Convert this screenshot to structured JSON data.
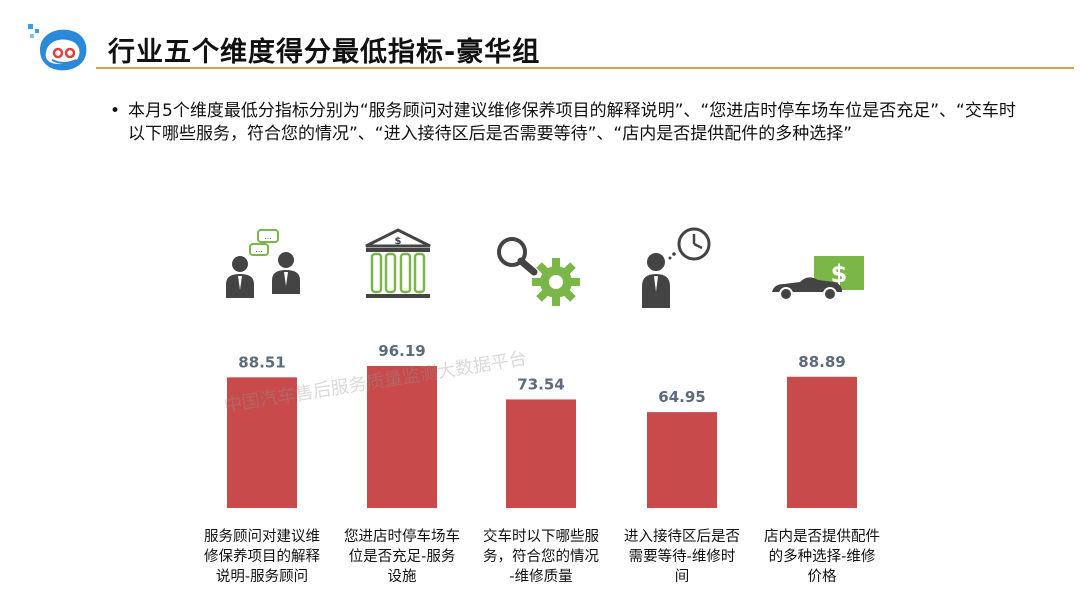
{
  "title": "行业五个维度得分最低指标-豪华组",
  "bullet_text": "本月5个维度最低分指标分别为“服务顾问对建议维修保养项目的解释说明”、“您进店时停车场车位是否充足”、“交车时以下哪些服务，符合您的情况”、“进入接待区后是否需要等待”、“店内是否提供配件的多种选择”",
  "watermark": "中国汽车售后服务质量监测大数据平台",
  "colors": {
    "bar": "#c84a4a",
    "value_label": "#5d6b7a",
    "accent_line": "#d8a44a",
    "icon_green": "#7ab648",
    "icon_dark": "#444444"
  },
  "icons": [
    "consultant-chat-icon",
    "bank-building-icon",
    "magnifier-gear-icon",
    "waiting-clock-icon",
    "car-price-icon"
  ],
  "chart_data": {
    "type": "bar",
    "categories": [
      [
        "服务顾问对建议维",
        "修保养项目的解释",
        "说明-服务顾问"
      ],
      [
        "您进店时停车场车",
        "位是否充足-服务",
        "设施"
      ],
      [
        "交车时以下哪些服",
        "务，符合您的情况",
        "-维修质量"
      ],
      [
        "进入接待区后是否",
        "需要等待-维修时",
        "间"
      ],
      [
        "店内是否提供配件",
        "的多种选择-维修",
        "价格"
      ]
    ],
    "values": [
      88.51,
      96.19,
      73.54,
      64.95,
      88.89
    ],
    "value_labels": [
      "88.51",
      "96.19",
      "73.54",
      "64.95",
      "88.89"
    ]
  }
}
